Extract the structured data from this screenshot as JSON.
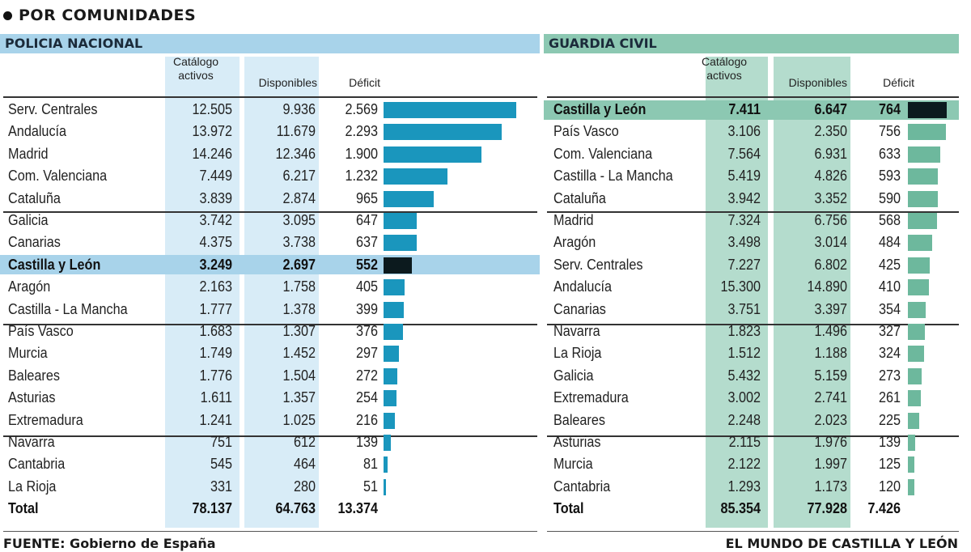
{
  "heading": "POR COMUNIDADES",
  "footer_left": "FUENTE: Gobierno de España",
  "footer_right": "EL MUNDO DE CASTILLA Y LEÓN",
  "colors": {
    "pn_header": "#a8d3ea",
    "pn_column": "#d8ecf7",
    "pn_bar": "#1a96bd",
    "gc_header": "#8cc8b2",
    "gc_column": "#b4dccd",
    "gc_bar": "#6db89d",
    "highlight_bar": "#0c1a1e"
  },
  "chart_data": [
    {
      "type": "bar",
      "title": "POLICIA NACIONAL",
      "columns": [
        "Catálogo activos",
        "Disponibles",
        "Déficit"
      ],
      "highlight": "Castilla y León",
      "rows": [
        {
          "name": "Serv. Centrales",
          "catalogo": "12.505",
          "disponibles": "9.936",
          "deficit": "2.569",
          "value": 2569
        },
        {
          "name": "Andalucía",
          "catalogo": "13.972",
          "disponibles": "11.679",
          "deficit": "2.293",
          "value": 2293
        },
        {
          "name": "Madrid",
          "catalogo": "14.246",
          "disponibles": "12.346",
          "deficit": "1.900",
          "value": 1900
        },
        {
          "name": "Com. Valenciana",
          "catalogo": "7.449",
          "disponibles": "6.217",
          "deficit": "1.232",
          "value": 1232
        },
        {
          "name": "Cataluña",
          "catalogo": "3.839",
          "disponibles": "2.874",
          "deficit": "965",
          "value": 965
        },
        {
          "name": "Galicia",
          "catalogo": "3.742",
          "disponibles": "3.095",
          "deficit": "647",
          "value": 647
        },
        {
          "name": "Canarias",
          "catalogo": "4.375",
          "disponibles": "3.738",
          "deficit": "637",
          "value": 637
        },
        {
          "name": "Castilla y León",
          "catalogo": "3.249",
          "disponibles": "2.697",
          "deficit": "552",
          "value": 552
        },
        {
          "name": "Aragón",
          "catalogo": "2.163",
          "disponibles": "1.758",
          "deficit": "405",
          "value": 405
        },
        {
          "name": "Castilla - La Mancha",
          "catalogo": "1.777",
          "disponibles": "1.378",
          "deficit": "399",
          "value": 399
        },
        {
          "name": "País Vasco",
          "catalogo": "1.683",
          "disponibles": "1.307",
          "deficit": "376",
          "value": 376
        },
        {
          "name": "Murcia",
          "catalogo": "1.749",
          "disponibles": "1.452",
          "deficit": "297",
          "value": 297
        },
        {
          "name": "Baleares",
          "catalogo": "1.776",
          "disponibles": "1.504",
          "deficit": "272",
          "value": 272
        },
        {
          "name": "Asturias",
          "catalogo": "1.611",
          "disponibles": "1.357",
          "deficit": "254",
          "value": 254
        },
        {
          "name": "Extremadura",
          "catalogo": "1.241",
          "disponibles": "1.025",
          "deficit": "216",
          "value": 216
        },
        {
          "name": "Navarra",
          "catalogo": "751",
          "disponibles": "612",
          "deficit": "139",
          "value": 139
        },
        {
          "name": "Cantabria",
          "catalogo": "545",
          "disponibles": "464",
          "deficit": "81",
          "value": 81
        },
        {
          "name": "La Rioja",
          "catalogo": "331",
          "disponibles": "280",
          "deficit": "51",
          "value": 51
        }
      ],
      "total": {
        "name": "Total",
        "catalogo": "78.137",
        "disponibles": "64.763",
        "deficit": "13.374"
      }
    },
    {
      "type": "bar",
      "title": "GUARDIA CIVIL",
      "columns": [
        "Catálogo activos",
        "Disponibles",
        "Déficit"
      ],
      "highlight": "Castilla y León",
      "rows": [
        {
          "name": "Castilla y León",
          "catalogo": "7.411",
          "disponibles": "6.647",
          "deficit": "764",
          "value": 764
        },
        {
          "name": "País Vasco",
          "catalogo": "3.106",
          "disponibles": "2.350",
          "deficit": "756",
          "value": 756
        },
        {
          "name": "Com. Valenciana",
          "catalogo": "7.564",
          "disponibles": "6.931",
          "deficit": "633",
          "value": 633
        },
        {
          "name": "Castilla - La Mancha",
          "catalogo": "5.419",
          "disponibles": "4.826",
          "deficit": "593",
          "value": 593
        },
        {
          "name": "Cataluña",
          "catalogo": "3.942",
          "disponibles": "3.352",
          "deficit": "590",
          "value": 590
        },
        {
          "name": "Madrid",
          "catalogo": "7.324",
          "disponibles": "6.756",
          "deficit": "568",
          "value": 568
        },
        {
          "name": "Aragón",
          "catalogo": "3.498",
          "disponibles": "3.014",
          "deficit": "484",
          "value": 484
        },
        {
          "name": "Serv. Centrales",
          "catalogo": "7.227",
          "disponibles": "6.802",
          "deficit": "425",
          "value": 425
        },
        {
          "name": "Andalucía",
          "catalogo": "15.300",
          "disponibles": "14.890",
          "deficit": "410",
          "value": 410
        },
        {
          "name": "Canarias",
          "catalogo": "3.751",
          "disponibles": "3.397",
          "deficit": "354",
          "value": 354
        },
        {
          "name": "Navarra",
          "catalogo": "1.823",
          "disponibles": "1.496",
          "deficit": "327",
          "value": 327
        },
        {
          "name": "La Rioja",
          "catalogo": "1.512",
          "disponibles": "1.188",
          "deficit": "324",
          "value": 324
        },
        {
          "name": "Galicia",
          "catalogo": "5.432",
          "disponibles": "5.159",
          "deficit": "273",
          "value": 273
        },
        {
          "name": "Extremadura",
          "catalogo": "3.002",
          "disponibles": "2.741",
          "deficit": "261",
          "value": 261
        },
        {
          "name": "Baleares",
          "catalogo": "2.248",
          "disponibles": "2.023",
          "deficit": "225",
          "value": 225
        },
        {
          "name": "Asturias",
          "catalogo": "2.115",
          "disponibles": "1.976",
          "deficit": "139",
          "value": 139
        },
        {
          "name": "Murcia",
          "catalogo": "2.122",
          "disponibles": "1.997",
          "deficit": "125",
          "value": 125
        },
        {
          "name": "Cantabria",
          "catalogo": "1.293",
          "disponibles": "1.173",
          "deficit": "120",
          "value": 120
        }
      ],
      "total": {
        "name": "Total",
        "catalogo": "85.354",
        "disponibles": "77.928",
        "deficit": "7.426"
      }
    }
  ]
}
